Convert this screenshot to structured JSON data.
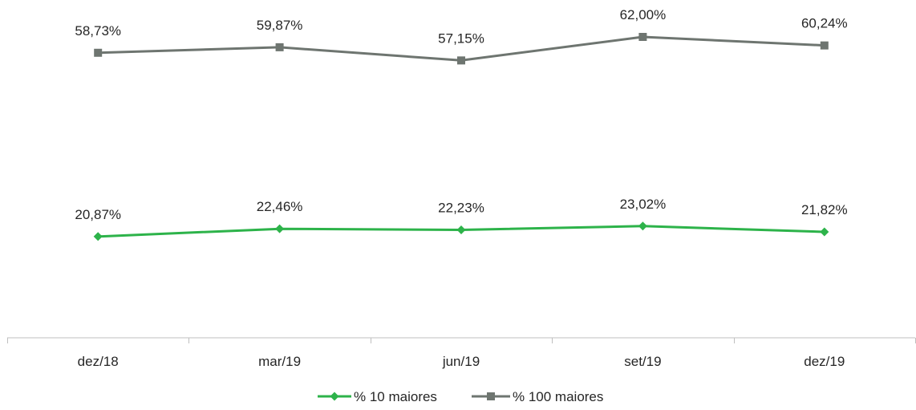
{
  "chart_data": {
    "type": "line",
    "title": "",
    "xlabel": "",
    "ylabel": "",
    "categories": [
      "dez/18",
      "mar/19",
      "jun/19",
      "set/19",
      "dez/19"
    ],
    "ylim": [
      0,
      70
    ],
    "grid": false,
    "legend_position": "bottom-center",
    "series": [
      {
        "name": "% 10 maiores",
        "values": [
          20.87,
          22.46,
          22.23,
          23.02,
          21.82
        ],
        "labels": [
          "20,87%",
          "22,46%",
          "22,23%",
          "23,02%",
          "21,82%"
        ],
        "color": "#2db34a",
        "marker": "diamond"
      },
      {
        "name": "% 100 maiores",
        "values": [
          58.73,
          59.87,
          57.15,
          62.0,
          60.24
        ],
        "labels": [
          "58,73%",
          "59,87%",
          "57,15%",
          "62,00%",
          "60,24%"
        ],
        "color": "#6e7570",
        "marker": "square"
      }
    ]
  }
}
